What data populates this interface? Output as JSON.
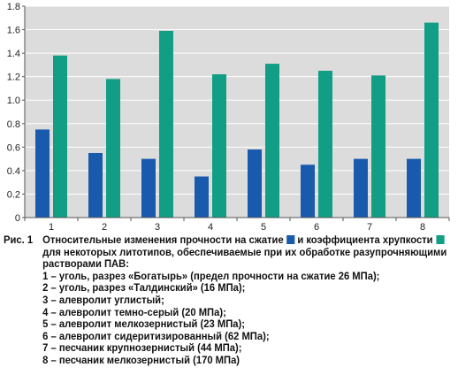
{
  "chart_data": {
    "type": "bar",
    "categories": [
      "1",
      "2",
      "3",
      "4",
      "5",
      "6",
      "7",
      "8"
    ],
    "series": [
      {
        "values": [
          0.75,
          0.55,
          0.5,
          0.35,
          0.58,
          0.45,
          0.5,
          0.5
        ],
        "color": "#1a5aad"
      },
      {
        "values": [
          1.38,
          1.18,
          1.59,
          1.22,
          1.31,
          1.25,
          1.21,
          1.66
        ],
        "color": "#119e84"
      }
    ],
    "y_ticks": [
      "0",
      "0.2",
      "0.4",
      "0.6",
      "0.8",
      "1.0",
      "1.2",
      "1.4",
      "1.6",
      "1.8"
    ],
    "ylim": [
      0,
      1.8
    ],
    "grid": true,
    "plot_background": "#dcdcdc",
    "grid_color": "#ffffff"
  },
  "caption": {
    "fig_label": "Рис. 1",
    "intro_a": "Относительные изменения прочности на сжатие",
    "intro_b": "и коэффициента хрупкости",
    "line2": "для некоторых литотипов, обеспечиваемые при их обработке разупрочняющими",
    "line3": "растворами ПАВ:",
    "items": [
      "1 – уголь, разрез «Богатырь» (предел прочности на сжатие 26 МПа);",
      "2 – уголь, разрез «Талдинский» (16 МПа);",
      "3 – алевролит углистый;",
      "4 – алевролит темно-серый (20 МПа);",
      "5 – алевролит мелкозернистый (23 МПа);",
      "6 – алевролит сидеритизированный (62 МПа);",
      "7 – песчаник крупнозернистый (44 МПа);",
      "8 – песчаник мелкозернистый (170 МПа)"
    ]
  }
}
